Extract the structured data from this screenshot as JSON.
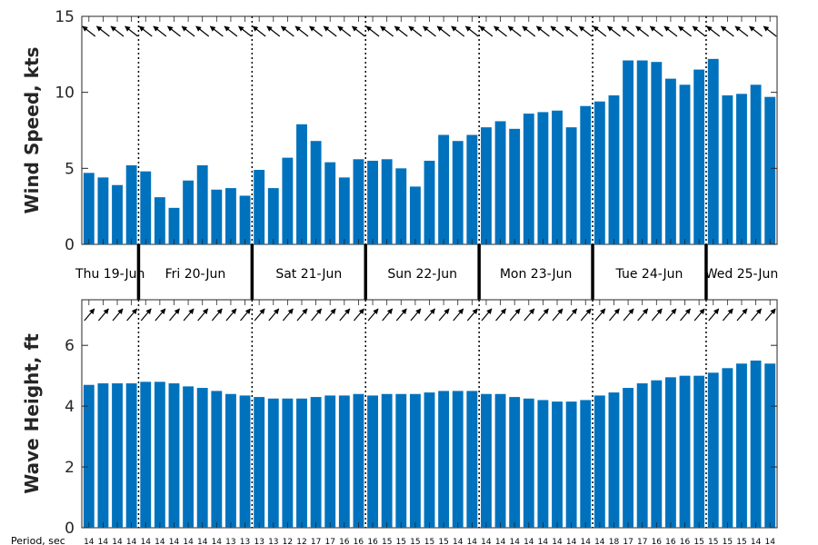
{
  "chart_data": [
    {
      "type": "bar",
      "ylabel": "Wind Speed, kts",
      "ylim": [
        0,
        15
      ],
      "yticks": [
        0,
        5,
        10,
        15
      ],
      "grid": false,
      "values": [
        4.7,
        4.4,
        3.9,
        5.2,
        4.8,
        3.1,
        2.4,
        4.2,
        5.2,
        3.6,
        3.7,
        3.2,
        4.9,
        3.7,
        5.7,
        7.9,
        6.8,
        5.4,
        4.4,
        5.6,
        5.5,
        5.6,
        5.0,
        3.8,
        5.5,
        7.2,
        6.8,
        7.2,
        7.7,
        8.1,
        7.6,
        8.6,
        8.7,
        8.8,
        7.7,
        9.1,
        9.4,
        9.8,
        12.1,
        12.1,
        12.0,
        10.9,
        10.5,
        11.5,
        12.2,
        9.8,
        9.9,
        10.5,
        9.7
      ],
      "direction_arrows": "arrow above every bar pointing toward upper-left (wind direction)",
      "bar_color": "#0072bd"
    },
    {
      "type": "bar",
      "ylabel": "Wave Height, ft",
      "ylim": [
        0,
        7.5
      ],
      "yticks": [
        0,
        2,
        4,
        6
      ],
      "grid": false,
      "values": [
        4.7,
        4.75,
        4.75,
        4.75,
        4.8,
        4.8,
        4.75,
        4.65,
        4.6,
        4.5,
        4.4,
        4.35,
        4.3,
        4.25,
        4.25,
        4.25,
        4.3,
        4.35,
        4.35,
        4.4,
        4.35,
        4.4,
        4.4,
        4.4,
        4.45,
        4.5,
        4.5,
        4.5,
        4.4,
        4.4,
        4.3,
        4.25,
        4.2,
        4.15,
        4.15,
        4.2,
        4.35,
        4.45,
        4.6,
        4.75,
        4.85,
        4.95,
        5.0,
        5.0,
        5.1,
        5.25,
        5.4,
        5.5,
        5.4
      ],
      "direction_arrows": "arrow above every bar pointing toward upper-right (wave direction)",
      "bar_color": "#0072bd",
      "period_label": "Period, sec",
      "periods": [
        "14",
        "14",
        "14",
        "14",
        "14",
        "14",
        "14",
        "14",
        "14",
        "14",
        "13",
        "13",
        "13",
        "13",
        "12",
        "12",
        "17",
        "17",
        "16",
        "16",
        "16",
        "15",
        "15",
        "15",
        "15",
        "15",
        "14",
        "14",
        "14",
        "14",
        "14",
        "14",
        "14",
        "14",
        "14",
        "14",
        "14",
        "18",
        "17",
        "17",
        "16",
        "16",
        "16",
        "15",
        "15",
        "15",
        "15",
        "14",
        "14"
      ]
    }
  ],
  "days": [
    "Thu 19-Jun",
    "Fri 20-Jun",
    "Sat 21-Jun",
    "Sun 22-Jun",
    "Mon 23-Jun",
    "Tue 24-Jun",
    "Wed 25-Jun"
  ],
  "day_boundaries_after_bar": [
    4,
    12,
    20,
    28,
    36,
    44
  ],
  "colors": {
    "bar": "#0072bd",
    "axis": "#262626",
    "divider": "#000000"
  }
}
